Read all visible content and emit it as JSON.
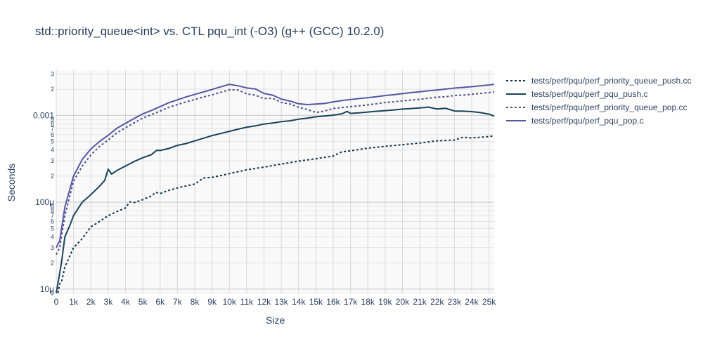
{
  "chart_data": {
    "type": "line",
    "title": "std::priority_queue<int> vs. CTL pqu_int (-O3) (g++ (GCC) 10.2.0)",
    "xlabel": "Size",
    "ylabel": "Seconds",
    "xlim": [
      0,
      25300
    ],
    "ylim_log10": [
      -5.05,
      -2.48
    ],
    "y_scale": "log",
    "grid": true,
    "legend_position": "right",
    "x_ticks": [
      {
        "v": 0,
        "label": "0"
      },
      {
        "v": 1000,
        "label": "1k"
      },
      {
        "v": 2000,
        "label": "2k"
      },
      {
        "v": 3000,
        "label": "3k"
      },
      {
        "v": 4000,
        "label": "4k"
      },
      {
        "v": 5000,
        "label": "5k"
      },
      {
        "v": 6000,
        "label": "6k"
      },
      {
        "v": 7000,
        "label": "7k"
      },
      {
        "v": 8000,
        "label": "8k"
      },
      {
        "v": 9000,
        "label": "9k"
      },
      {
        "v": 10000,
        "label": "10k"
      },
      {
        "v": 11000,
        "label": "11k"
      },
      {
        "v": 12000,
        "label": "12k"
      },
      {
        "v": 13000,
        "label": "13k"
      },
      {
        "v": 14000,
        "label": "14k"
      },
      {
        "v": 15000,
        "label": "15k"
      },
      {
        "v": 16000,
        "label": "16k"
      },
      {
        "v": 17000,
        "label": "17k"
      },
      {
        "v": 18000,
        "label": "18k"
      },
      {
        "v": 19000,
        "label": "19k"
      },
      {
        "v": 20000,
        "label": "20k"
      },
      {
        "v": 21000,
        "label": "21k"
      },
      {
        "v": 22000,
        "label": "22k"
      },
      {
        "v": 23000,
        "label": "23k"
      },
      {
        "v": 24000,
        "label": "24k"
      },
      {
        "v": 25000,
        "label": "25k"
      }
    ],
    "y_major_ticks": [
      {
        "v": 1e-05,
        "label": "10μ"
      },
      {
        "v": 0.0001,
        "label": "100μ"
      },
      {
        "v": 0.001,
        "label": "0.001"
      }
    ],
    "y_minor_ticks": [
      {
        "v": 9e-06,
        "label": "9"
      },
      {
        "v": 2e-05,
        "label": "2"
      },
      {
        "v": 3e-05,
        "label": "3"
      },
      {
        "v": 4e-05,
        "label": "4"
      },
      {
        "v": 5e-05,
        "label": "5"
      },
      {
        "v": 6e-05,
        "label": "6"
      },
      {
        "v": 7e-05,
        "label": "7"
      },
      {
        "v": 8e-05,
        "label": "8"
      },
      {
        "v": 9e-05,
        "label": "9"
      },
      {
        "v": 0.0002,
        "label": "2"
      },
      {
        "v": 0.0003,
        "label": "3"
      },
      {
        "v": 0.0004,
        "label": "4"
      },
      {
        "v": 0.0005,
        "label": "5"
      },
      {
        "v": 0.0006,
        "label": "6"
      },
      {
        "v": 0.0007,
        "label": "7"
      },
      {
        "v": 0.0008,
        "label": "8"
      },
      {
        "v": 0.0009,
        "label": "9"
      },
      {
        "v": 0.002,
        "label": "2"
      },
      {
        "v": 0.003,
        "label": "3"
      }
    ],
    "series": [
      {
        "name": "tests/perf/pqu/perf_priority_queue_push.cc",
        "color": "#0d3347",
        "dash": "dot",
        "x": [
          100,
          200,
          300,
          500,
          700,
          1000,
          1500,
          2000,
          2500,
          3000,
          3500,
          4000,
          4250,
          4500,
          5000,
          5500,
          5750,
          6000,
          6500,
          7000,
          7500,
          8000,
          8500,
          9000,
          10000,
          11000,
          12000,
          13000,
          14000,
          15000,
          16000,
          16500,
          17000,
          18000,
          19000,
          20000,
          21000,
          22000,
          23000,
          23500,
          24000,
          25000,
          25300
        ],
        "y": [
          9e-06,
          1.15e-05,
          1.2e-05,
          1.8e-05,
          2.2e-05,
          3e-05,
          3.8e-05,
          5.2e-05,
          6e-05,
          7e-05,
          7.8e-05,
          8.6e-05,
          0.000101,
          9.9e-05,
          0.000107,
          0.000118,
          0.00013,
          0.000126,
          0.000137,
          0.000146,
          0.000154,
          0.000162,
          0.00019,
          0.000193,
          0.000213,
          0.000236,
          0.000254,
          0.000275,
          0.000297,
          0.000317,
          0.00034,
          0.00038,
          0.00039,
          0.00042,
          0.00044,
          0.00046,
          0.00048,
          0.00051,
          0.00052,
          0.00056,
          0.00055,
          0.00057,
          0.00058
        ]
      },
      {
        "name": "tests/perf/pqu/perf_pqu_push.c",
        "color": "#17435a",
        "dash": "solid",
        "x": [
          0,
          300,
          500,
          800,
          1000,
          1500,
          2000,
          2500,
          2800,
          3000,
          3200,
          3500,
          4000,
          4500,
          5000,
          5500,
          5800,
          6000,
          6500,
          7000,
          7500,
          8000,
          8500,
          9000,
          9500,
          10000,
          10500,
          11000,
          11500,
          12000,
          12500,
          13000,
          13500,
          14000,
          14500,
          15000,
          15500,
          16000,
          16500,
          16800,
          17000,
          17500,
          18000,
          18500,
          19000,
          19500,
          20000,
          20500,
          21000,
          21500,
          22000,
          22500,
          23000,
          23500,
          24000,
          24500,
          25000,
          25300
        ],
        "y": [
          9e-06,
          2e-05,
          4e-05,
          5.5e-05,
          7e-05,
          0.0001,
          0.000122,
          0.000153,
          0.000178,
          0.00024,
          0.000211,
          0.000232,
          0.000261,
          0.000294,
          0.000325,
          0.000353,
          0.000396,
          0.000394,
          0.000416,
          0.000451,
          0.000474,
          0.000508,
          0.000546,
          0.000584,
          0.000618,
          0.000655,
          0.000694,
          0.000731,
          0.000757,
          0.000794,
          0.000816,
          0.000846,
          0.000865,
          0.000903,
          0.00093,
          0.000963,
          0.000983,
          0.001006,
          0.001043,
          0.00111,
          0.001055,
          0.001071,
          0.001093,
          0.001114,
          0.001134,
          0.001154,
          0.001181,
          0.001199,
          0.001218,
          0.001245,
          0.001183,
          0.001205,
          0.001124,
          0.001117,
          0.001104,
          0.001077,
          0.001032,
          0.00098
        ]
      },
      {
        "name": "tests/perf/pqu/perf_priority_queue_pop.cc",
        "color": "#4a4e8c",
        "dash": "dot",
        "x": [
          0,
          200,
          500,
          1000,
          1500,
          2000,
          2500,
          3000,
          3500,
          4000,
          4500,
          5000,
          5500,
          6000,
          6500,
          7000,
          7500,
          8000,
          8500,
          9000,
          9500,
          10000,
          10500,
          11000,
          11500,
          12000,
          12500,
          13000,
          13500,
          14000,
          14500,
          15000,
          15500,
          16000,
          16500,
          17000,
          17500,
          18000,
          18500,
          19000,
          19500,
          20000,
          20500,
          21000,
          21500,
          22000,
          22500,
          23000,
          23500,
          24000,
          24500,
          25000,
          25300
        ],
        "y": [
          2.5e-05,
          3e-05,
          7e-05,
          0.000175,
          0.00026,
          0.00035,
          0.00044,
          0.00052,
          0.00063,
          0.00072,
          0.00082,
          0.00093,
          0.00102,
          0.00112,
          0.00124,
          0.00133,
          0.00143,
          0.00152,
          0.00163,
          0.00172,
          0.00184,
          0.00197,
          0.00196,
          0.00177,
          0.00171,
          0.00156,
          0.00157,
          0.00141,
          0.00135,
          0.00124,
          0.00117,
          0.00108,
          0.00112,
          0.0012,
          0.00123,
          0.00126,
          0.00129,
          0.00132,
          0.00136,
          0.00141,
          0.00143,
          0.00147,
          0.0015,
          0.00153,
          0.00158,
          0.00162,
          0.00164,
          0.00169,
          0.00171,
          0.00175,
          0.00179,
          0.00183,
          0.00186
        ]
      },
      {
        "name": "tests/perf/pqu/perf_pqu_pop.c",
        "color": "#5657a0",
        "dash": "solid",
        "x": [
          0,
          200,
          500,
          1000,
          1500,
          2000,
          2500,
          3000,
          3500,
          4000,
          4500,
          5000,
          5500,
          6000,
          6500,
          7000,
          7500,
          8000,
          8500,
          9000,
          9500,
          10000,
          10500,
          11000,
          11500,
          12000,
          12500,
          13000,
          13500,
          14000,
          14500,
          15000,
          15500,
          16000,
          16500,
          17000,
          17500,
          18000,
          18500,
          19000,
          19500,
          20000,
          20500,
          21000,
          21500,
          22000,
          22500,
          23000,
          23500,
          24000,
          24500,
          25000,
          25300
        ],
        "y": [
          3e-05,
          3.6e-05,
          8.8e-05,
          0.0002,
          0.00031,
          0.00041,
          0.0005,
          0.00059,
          0.00071,
          0.00081,
          0.00092,
          0.00104,
          0.00114,
          0.00126,
          0.0014,
          0.00151,
          0.00163,
          0.00174,
          0.00186,
          0.00199,
          0.00213,
          0.00228,
          0.00219,
          0.00207,
          0.00202,
          0.00179,
          0.00171,
          0.00154,
          0.00146,
          0.00136,
          0.00133,
          0.00135,
          0.00137,
          0.00143,
          0.00148,
          0.00152,
          0.00156,
          0.0016,
          0.00164,
          0.00169,
          0.00173,
          0.00178,
          0.00183,
          0.00187,
          0.00192,
          0.00196,
          0.00201,
          0.00206,
          0.0021,
          0.00214,
          0.00219,
          0.00224,
          0.00228
        ]
      }
    ]
  }
}
